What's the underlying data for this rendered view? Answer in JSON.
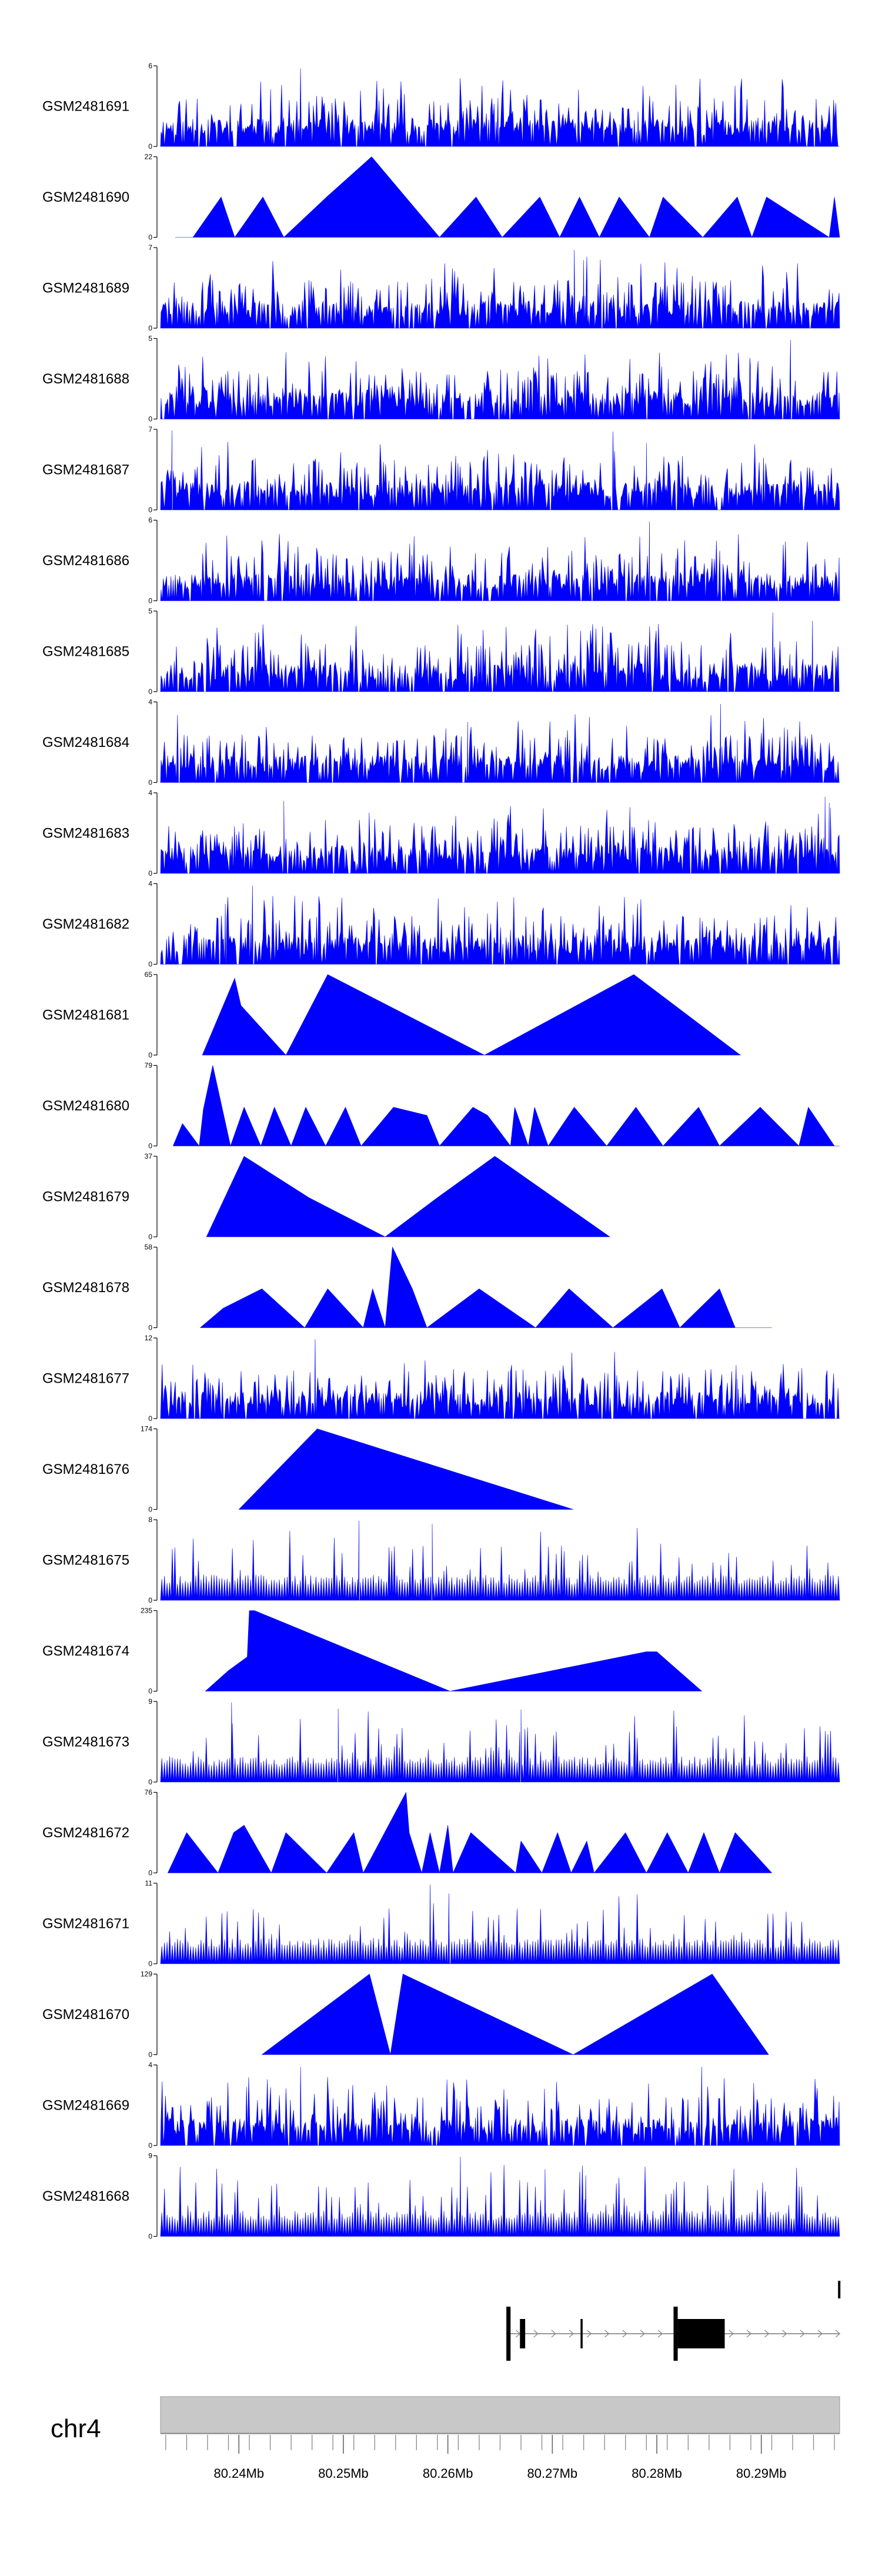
{
  "chart_data": {
    "type": "area",
    "title": "",
    "chromosome": "chr4",
    "colors": {
      "signal": "#0000ff",
      "gene": "#000000",
      "ideogram": "#c8c8c8"
    },
    "xlim_mb": [
      80.2325,
      80.2975
    ],
    "x_ticks_mb": [
      80.24,
      80.25,
      80.26,
      80.27,
      80.28,
      80.29
    ],
    "x_tick_labels": [
      "80.24Mb",
      "80.25Mb",
      "80.26Mb",
      "80.27Mb",
      "80.28Mb",
      "80.29Mb"
    ],
    "tracks": [
      {
        "name": "GSM2481691",
        "ymax": 6,
        "ymax_label": "6",
        "ymin_label": "0",
        "style": "dense",
        "seed": 11,
        "peaks": [
          [
            80.2459,
            5.8
          ],
          [
            80.2648,
            3.6
          ],
          [
            80.2782,
            2.6
          ]
        ]
      },
      {
        "name": "GSM2481690",
        "ymax": 22,
        "ymax_label": "22",
        "ymin_label": "0",
        "style": "sparse",
        "x": [
          80.2339,
          80.2356,
          80.2383,
          80.2396,
          80.2423,
          80.2443,
          80.2484,
          80.2527,
          80.2592,
          80.2627,
          80.2652,
          80.2688,
          80.2707,
          80.2726,
          80.2745,
          80.2764,
          80.2793,
          80.2806,
          80.2844,
          80.2877,
          80.2891,
          80.2905,
          80.2965,
          80.297,
          80.2975
        ],
        "y": [
          0,
          0,
          11,
          0,
          11,
          0,
          11,
          22,
          0,
          11,
          0,
          11,
          0,
          11,
          0,
          11,
          0,
          11,
          0,
          11,
          0,
          11,
          0,
          11,
          0
        ]
      },
      {
        "name": "GSM2481689",
        "ymax": 7,
        "ymax_label": "7",
        "ymin_label": "0",
        "style": "dense",
        "seed": 23,
        "peaks": [
          [
            80.2721,
            6.8
          ],
          [
            80.273,
            5.9
          ],
          [
            80.2733,
            6.2
          ]
        ]
      },
      {
        "name": "GSM2481688",
        "ymax": 5,
        "ymax_label": "5",
        "ymin_label": "0",
        "style": "dense",
        "seed": 37,
        "peaks": [
          [
            80.2928,
            4.9
          ],
          [
            80.2889,
            3.8
          ]
        ]
      },
      {
        "name": "GSM2481687",
        "ymax": 7,
        "ymax_label": "7",
        "ymin_label": "0",
        "style": "dense",
        "seed": 41,
        "peaks": [
          [
            80.2336,
            6.9
          ],
          [
            80.2758,
            6.8
          ],
          [
            80.279,
            5.8
          ]
        ]
      },
      {
        "name": "GSM2481686",
        "ymax": 6,
        "ymax_label": "6",
        "ymin_label": "0",
        "style": "dense",
        "seed": 53,
        "peaks": [
          [
            80.2793,
            5.9
          ],
          [
            80.282,
            3.9
          ]
        ]
      },
      {
        "name": "GSM2481685",
        "ymax": 5,
        "ymax_label": "5",
        "ymin_label": "0",
        "style": "dense",
        "seed": 67,
        "peaks": [
          [
            80.2911,
            4.9
          ],
          [
            80.2949,
            4.4
          ]
        ]
      },
      {
        "name": "GSM2481684",
        "ymax": 4,
        "ymax_label": "4",
        "ymin_label": "0",
        "style": "dense",
        "seed": 71,
        "peaks": [
          [
            80.2861,
            3.9
          ],
          [
            80.2619,
            3.0
          ],
          [
            80.2877,
            2.1
          ]
        ]
      },
      {
        "name": "GSM2481683",
        "ymax": 4,
        "ymax_label": "4",
        "ymin_label": "0",
        "style": "dense",
        "seed": 83,
        "peaks": [
          [
            80.2443,
            3.6
          ],
          [
            80.2961,
            3.8
          ],
          [
            80.2965,
            3.5
          ]
        ]
      },
      {
        "name": "GSM2481682",
        "ymax": 4,
        "ymax_label": "4",
        "ymin_label": "0",
        "style": "dense",
        "seed": 97,
        "peaks": [
          [
            80.2413,
            3.9
          ],
          [
            80.2387,
            3.0
          ]
        ]
      },
      {
        "name": "GSM2481681",
        "ymax": 65,
        "ymax_label": "65",
        "ymin_label": "0",
        "style": "sparse",
        "x": [
          80.2365,
          80.2396,
          80.2402,
          80.2445,
          80.2485,
          80.2635,
          80.2778,
          80.288
        ],
        "y": [
          0,
          62,
          40,
          0,
          65,
          0,
          65,
          0
        ]
      },
      {
        "name": "GSM2481680",
        "ymax": 79,
        "ymax_label": "79",
        "ymin_label": "0",
        "style": "sparse",
        "x": [
          80.2337,
          80.2346,
          80.2362,
          80.2366,
          80.2375,
          80.2392,
          80.2405,
          80.2421,
          80.2434,
          80.245,
          80.2464,
          80.2483,
          80.2502,
          80.2517,
          80.2548,
          80.258,
          80.2592,
          80.2624,
          80.2638,
          80.266,
          80.2664,
          80.2677,
          80.2683,
          80.2696,
          80.2721,
          80.2752,
          80.278,
          80.2806,
          80.284,
          80.286,
          80.2899,
          80.2936,
          80.2945,
          80.297,
          80.2975
        ],
        "y": [
          0,
          22,
          0,
          36,
          79,
          0,
          38,
          0,
          38,
          0,
          38,
          0,
          38,
          0,
          38,
          30,
          0,
          38,
          30,
          0,
          38,
          0,
          38,
          0,
          38,
          0,
          38,
          0,
          38,
          0,
          38,
          0,
          38,
          0,
          0
        ]
      },
      {
        "name": "GSM2481679",
        "ymax": 37,
        "ymax_label": "37",
        "ymin_label": "0",
        "style": "sparse",
        "x": [
          80.2369,
          80.2405,
          80.2467,
          80.254,
          80.259,
          80.2645,
          80.2755
        ],
        "y": [
          0,
          37,
          18,
          0,
          18,
          37,
          0
        ]
      },
      {
        "name": "GSM2481678",
        "ymax": 58,
        "ymax_label": "58",
        "ymin_label": "0",
        "style": "sparse",
        "x": [
          80.2363,
          80.2385,
          80.2422,
          80.2463,
          80.2485,
          80.2519,
          80.2528,
          80.254,
          80.2547,
          80.2566,
          80.258,
          80.263,
          80.2684,
          80.2716,
          80.2758,
          80.2805,
          80.2822,
          80.286,
          80.2875,
          80.291
        ],
        "y": [
          0,
          14,
          28,
          0,
          28,
          0,
          28,
          0,
          58,
          28,
          0,
          28,
          0,
          28,
          0,
          28,
          0,
          28,
          0,
          0
        ]
      },
      {
        "name": "GSM2481677",
        "ymax": 12,
        "ymax_label": "12",
        "ymin_label": "0",
        "style": "dense",
        "seed": 101,
        "peaks": [
          [
            80.2473,
            11.8
          ],
          [
            80.2672,
            7.3
          ],
          [
            80.2877,
            5.9
          ]
        ]
      },
      {
        "name": "GSM2481676",
        "ymax": 174,
        "ymax_label": "174",
        "ymin_label": "0",
        "style": "sparse",
        "x": [
          80.24,
          80.2475,
          80.272
        ],
        "y": [
          0,
          174,
          0
        ]
      },
      {
        "name": "GSM2481675",
        "ymax": 8,
        "ymax_label": "8",
        "ymin_label": "0",
        "style": "spiky",
        "seed": 113,
        "peaks": [
          [
            80.2515,
            7.9
          ],
          [
            80.2585,
            7.6
          ]
        ]
      },
      {
        "name": "GSM2481674",
        "ymax": 235,
        "ymax_label": "235",
        "ymin_label": "0",
        "style": "sparse",
        "x": [
          80.2368,
          80.239,
          80.2408,
          80.241,
          80.2415,
          80.2602,
          80.279,
          80.2797,
          80.28,
          80.2843
        ],
        "y": [
          0,
          60,
          100,
          235,
          235,
          0,
          115,
          115,
          115,
          0
        ]
      },
      {
        "name": "GSM2481673",
        "ymax": 9,
        "ymax_label": "9",
        "ymin_label": "0",
        "style": "spiky",
        "seed": 127,
        "peaks": [
          [
            80.2393,
            8.9
          ],
          [
            80.2495,
            8.2
          ],
          [
            80.267,
            8.1
          ]
        ]
      },
      {
        "name": "GSM2481672",
        "ymax": 76,
        "ymax_label": "76",
        "ymin_label": "0",
        "style": "sparse",
        "x": [
          80.2332,
          80.235,
          80.238,
          80.2395,
          80.2405,
          80.2431,
          80.2445,
          80.2484,
          80.251,
          80.2519,
          80.256,
          80.2563,
          80.2575,
          80.2583,
          80.2592,
          80.26,
          80.2605,
          80.2622,
          80.2665,
          80.267,
          80.269,
          80.2705,
          80.2718,
          80.2733,
          80.274,
          80.277,
          80.279,
          80.281,
          80.283,
          80.2845,
          80.286,
          80.2875,
          80.291
        ],
        "y": [
          0,
          38,
          0,
          38,
          45,
          0,
          38,
          0,
          38,
          0,
          76,
          38,
          0,
          38,
          0,
          45,
          0,
          38,
          0,
          30,
          0,
          38,
          0,
          30,
          0,
          38,
          0,
          38,
          0,
          38,
          0,
          38,
          0
        ]
      },
      {
        "name": "GSM2481671",
        "ymax": 11,
        "ymax_label": "11",
        "ymin_label": "0",
        "style": "spiky",
        "seed": 131,
        "peaks": [
          [
            80.2583,
            10.8
          ],
          [
            80.2601,
            9.6
          ]
        ]
      },
      {
        "name": "GSM2481670",
        "ymax": 129,
        "ymax_label": "129",
        "ymin_label": "0",
        "style": "sparse",
        "x": [
          80.2422,
          80.2525,
          80.2545,
          80.2557,
          80.272,
          80.2853,
          80.2907
        ],
        "y": [
          0,
          129,
          0,
          129,
          0,
          129,
          0
        ]
      },
      {
        "name": "GSM2481669",
        "ymax": 4,
        "ymax_label": "4",
        "ymin_label": "0",
        "style": "dense",
        "seed": 139,
        "peaks": [
          [
            80.2459,
            3.9
          ],
          [
            80.2843,
            3.9
          ]
        ]
      },
      {
        "name": "GSM2481668",
        "ymax": 9,
        "ymax_label": "9",
        "ymin_label": "0",
        "style": "spiky",
        "seed": 149,
        "peaks": [
          [
            80.2612,
            8.9
          ],
          [
            80.2693,
            7.5
          ],
          [
            80.2732,
            6.8
          ]
        ]
      }
    ],
    "gene_exons_mb": [
      [
        80.2656,
        80.266
      ],
      [
        80.2669,
        80.2674
      ],
      [
        80.2727,
        80.2729
      ],
      [
        80.2816,
        80.282
      ],
      [
        80.282,
        80.2865
      ]
    ],
    "gene_intron_mb": [
      80.2656,
      80.2975
    ],
    "gene_strand": "+",
    "gene_right_marker_mb": 80.2974
  }
}
